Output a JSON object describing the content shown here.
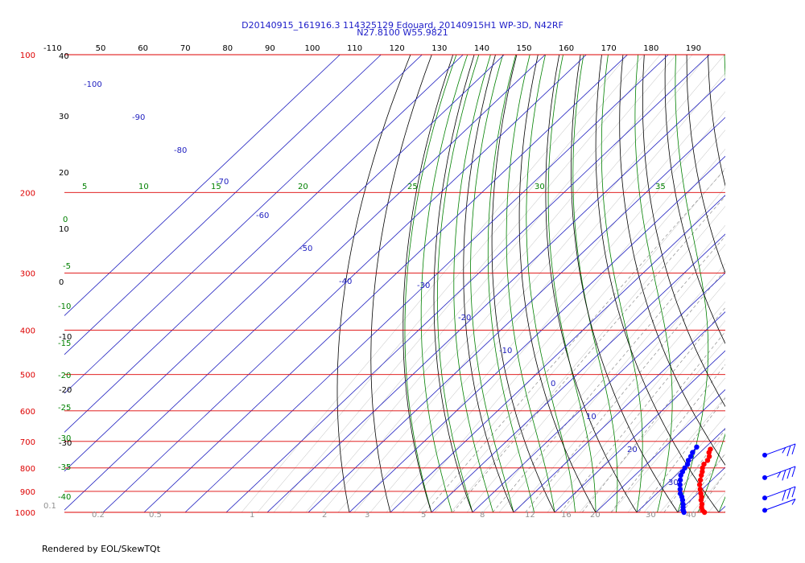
{
  "header": {
    "title_line1": "D20140915_161916.3 114325129 Edouard, 20140915H1 WP-3D, N42RF",
    "title_line2": "N27.8100 W55.9821"
  },
  "footer": {
    "text": "Rendered by EOL/SkewTQt"
  },
  "colors": {
    "isobar": "#dd0000",
    "isotherm": "#2020c0",
    "dry_adiabat": "#000000",
    "moist_adiabat": "#008000",
    "mixing_ratio": "#909090",
    "temperature_trace": "#ff0000",
    "dewpoint_trace": "#0000ff"
  },
  "chart_data": {
    "type": "skew-t",
    "pressure_range_hpa": [
      1000,
      100
    ],
    "isobars": [
      "100",
      "200",
      "300",
      "400",
      "500",
      "600",
      "700",
      "800",
      "900",
      "1000"
    ],
    "isotherms_top_labels": [
      "-110",
      "50",
      "60",
      "70",
      "80",
      "90",
      "100",
      "110",
      "120",
      "130",
      "140",
      "150",
      "160",
      "170",
      "180",
      "190"
    ],
    "isotherm_labels": [
      "-100",
      "-90",
      "-80",
      "-70",
      "-60",
      "-50",
      "-40",
      "-30",
      "-20",
      "-10",
      "0",
      "10",
      "20",
      "30"
    ],
    "dry_adiabat_labels": [
      "40",
      "30",
      "20",
      "10",
      "0",
      "-10",
      "-20",
      "-30"
    ],
    "moist_adiabat_labels": [
      "5",
      "10",
      "15",
      "20",
      "25",
      "30",
      "35",
      "0",
      "-5",
      "-10",
      "-15",
      "-20",
      "-25",
      "-30",
      "-35",
      "-40"
    ],
    "mixing_ratio_labels": [
      "0.1",
      "0.2",
      "0.5",
      "1",
      "2",
      "3",
      "5",
      "8",
      "12",
      "16",
      "20",
      "30",
      "40"
    ],
    "temperature_profile": [
      {
        "p": 1000,
        "t": 26.5
      },
      {
        "p": 990,
        "t": 25.5
      },
      {
        "p": 975,
        "t": 24.5
      },
      {
        "p": 960,
        "t": 23.8
      },
      {
        "p": 940,
        "t": 22.5
      },
      {
        "p": 925,
        "t": 21.8
      },
      {
        "p": 910,
        "t": 20.8
      },
      {
        "p": 890,
        "t": 19.5
      },
      {
        "p": 870,
        "t": 18.2
      },
      {
        "p": 850,
        "t": 17.2
      },
      {
        "p": 830,
        "t": 16.2
      },
      {
        "p": 815,
        "t": 15.5
      },
      {
        "p": 800,
        "t": 14.6
      },
      {
        "p": 785,
        "t": 14.0
      },
      {
        "p": 770,
        "t": 13.9
      },
      {
        "p": 755,
        "t": 13.3
      },
      {
        "p": 740,
        "t": 12.2
      },
      {
        "p": 728,
        "t": 11.7
      }
    ],
    "dewpoint_profile": [
      {
        "p": 1000,
        "td": 21.5
      },
      {
        "p": 990,
        "td": 20.8
      },
      {
        "p": 975,
        "td": 20.0
      },
      {
        "p": 960,
        "td": 19.2
      },
      {
        "p": 940,
        "td": 18.0
      },
      {
        "p": 925,
        "td": 17.0
      },
      {
        "p": 910,
        "td": 15.8
      },
      {
        "p": 890,
        "td": 14.6
      },
      {
        "p": 870,
        "td": 13.4
      },
      {
        "p": 850,
        "td": 12.3
      },
      {
        "p": 830,
        "td": 11.2
      },
      {
        "p": 815,
        "td": 10.7
      },
      {
        "p": 800,
        "td": 10.3
      },
      {
        "p": 785,
        "td": 10.0
      },
      {
        "p": 770,
        "td": 9.2
      },
      {
        "p": 755,
        "td": 8.8
      },
      {
        "p": 740,
        "td": 8.2
      },
      {
        "p": 720,
        "td": 7.8
      }
    ],
    "wind_barbs": [
      {
        "p": 990,
        "flags": [
          "half"
        ]
      },
      {
        "p": 930,
        "flags": [
          "full",
          "full",
          "full"
        ]
      },
      {
        "p": 840,
        "flags": [
          "full",
          "full",
          "full",
          "half"
        ]
      },
      {
        "p": 750,
        "flags": [
          "full",
          "full",
          "half"
        ]
      }
    ]
  }
}
